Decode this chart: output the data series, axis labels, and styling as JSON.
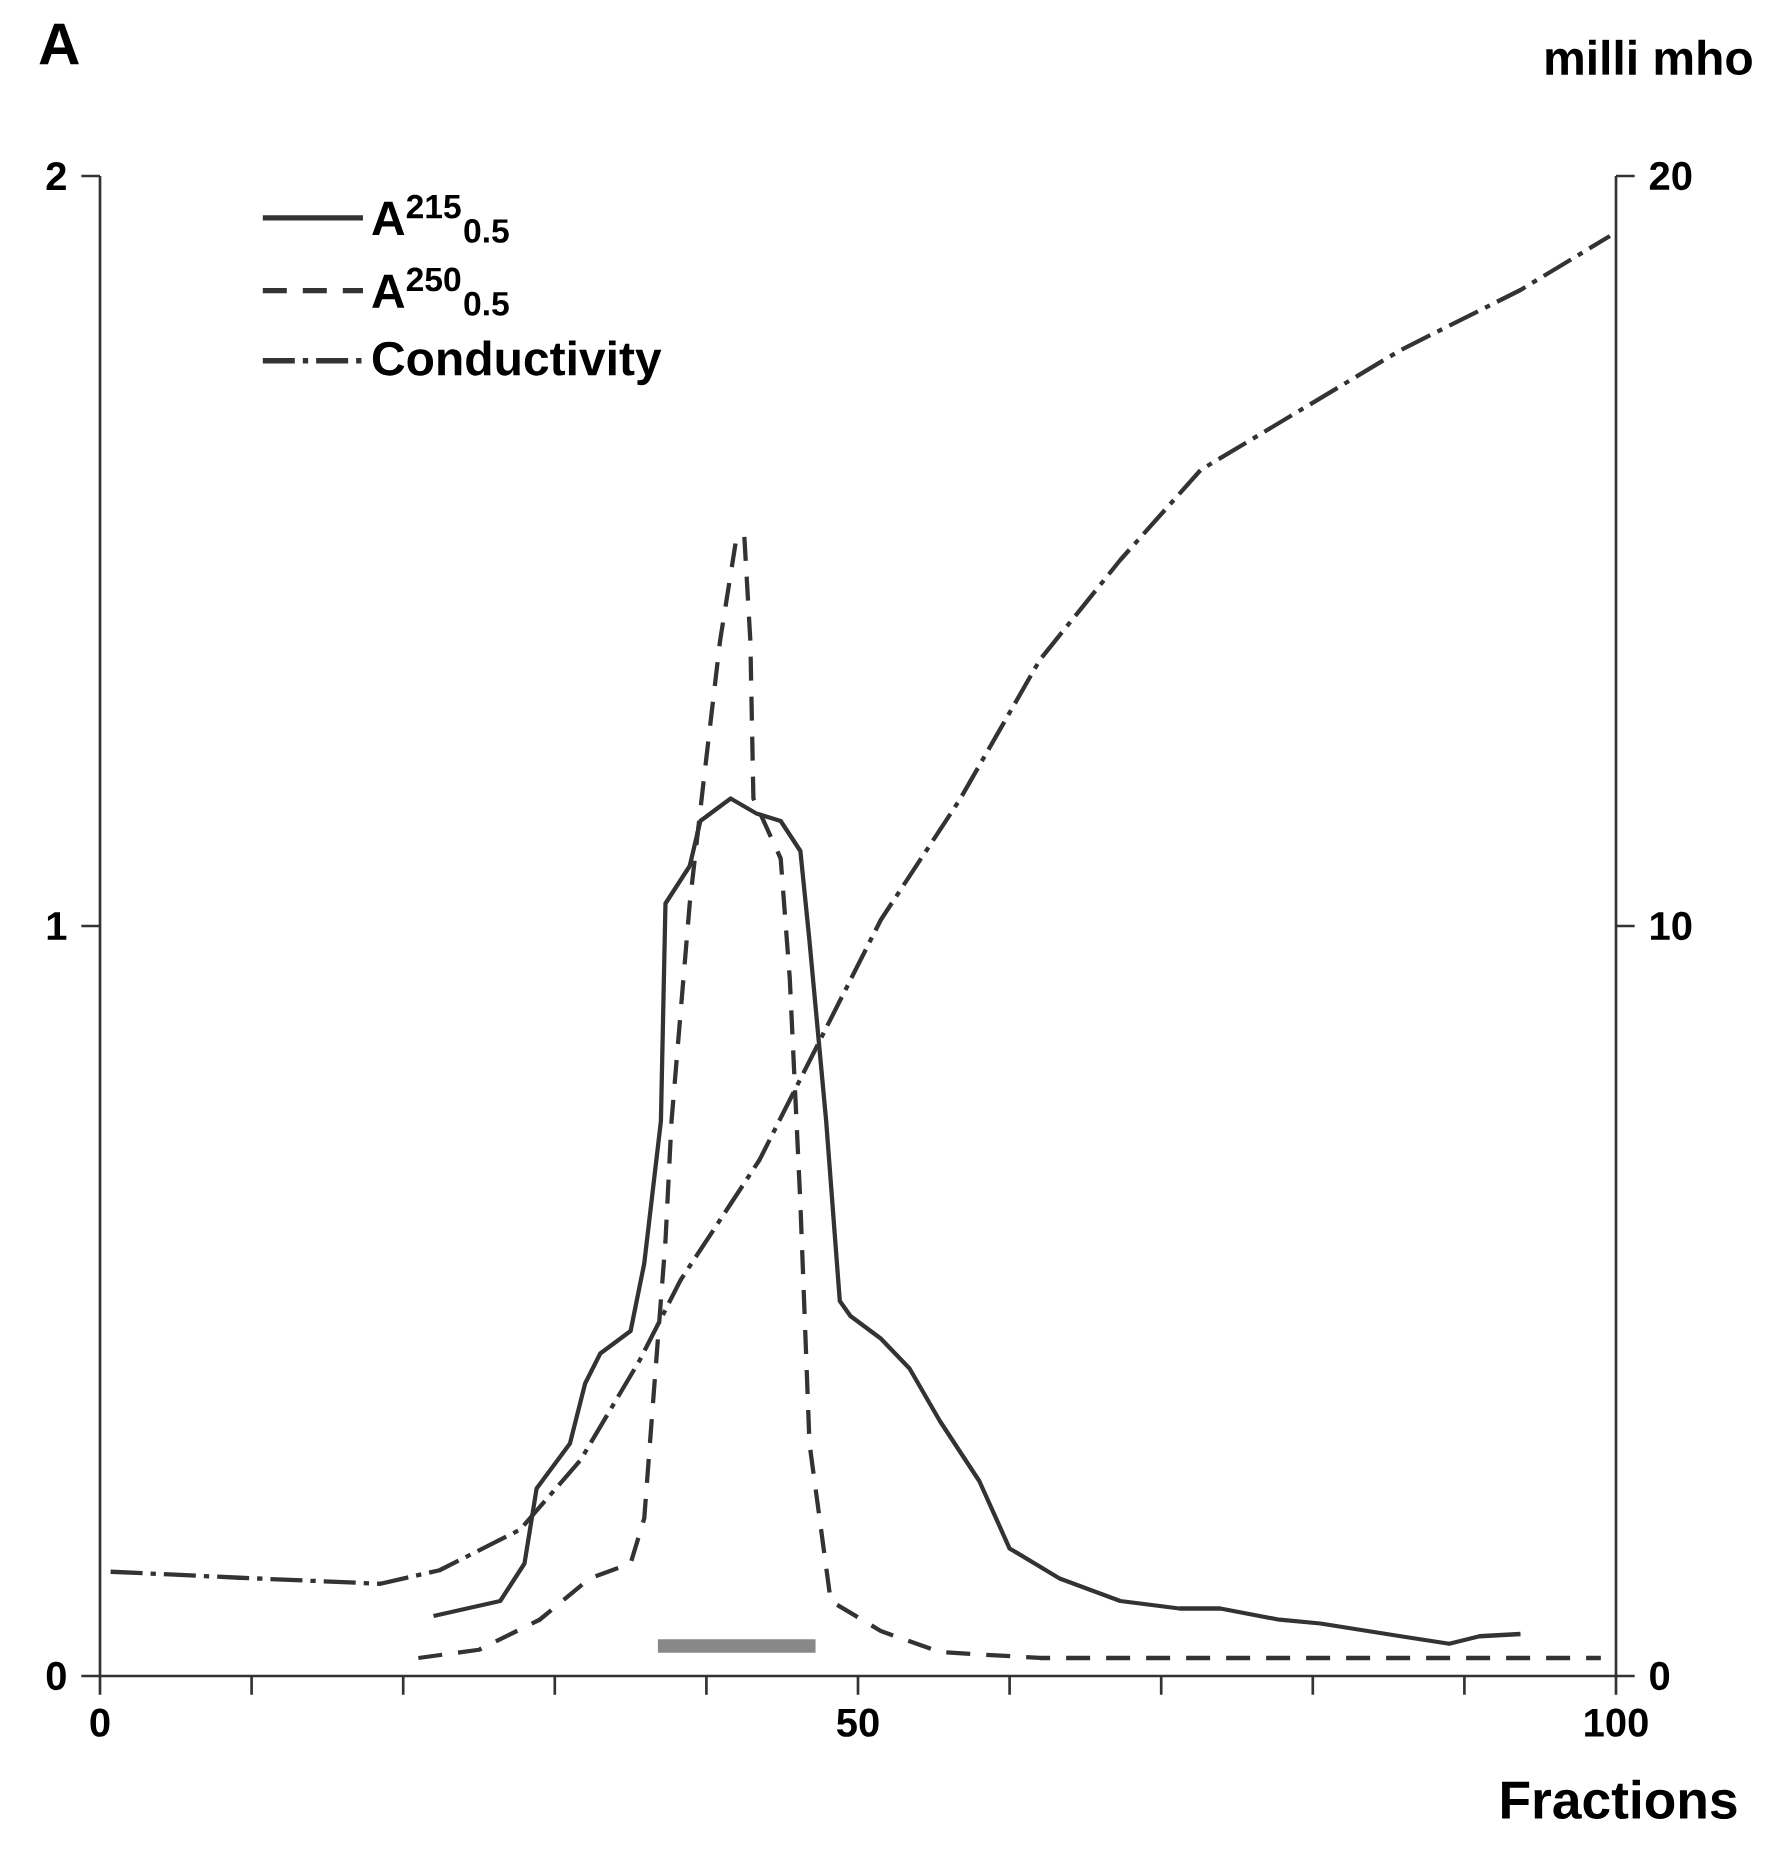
{
  "chart_data": {
    "type": "line",
    "title": "A",
    "xlabel": "Fractions",
    "y2label": "milli mho",
    "xlim": [
      0,
      100
    ],
    "ylim": [
      0,
      2
    ],
    "y2lim": [
      0,
      20
    ],
    "xticks": [
      0,
      {
        "value": 10,
        "label": null
      },
      {
        "value": 20,
        "label": null
      },
      {
        "value": 30,
        "label": null
      },
      {
        "value": 40,
        "label": null
      },
      50,
      {
        "value": 60,
        "label": null
      },
      {
        "value": 70,
        "label": null
      },
      {
        "value": 80,
        "label": null
      },
      {
        "value": 90,
        "label": null
      },
      100
    ],
    "yticks": [
      0,
      1,
      2
    ],
    "y2ticks": [
      0,
      10,
      20
    ],
    "grid": false,
    "legend": "top left",
    "series": [
      {
        "name": "A$^{215}$$_{0.5}$",
        "color": "#333333",
        "line_style": "solid",
        "axis": "y",
        "x": [
          22,
          26.4,
          28,
          28.8,
          31,
          32,
          33,
          35,
          35.9,
          37,
          37.3,
          38.9,
          39.6,
          41.6,
          43.3,
          44.9,
          46.2,
          46.8,
          47.9,
          48.8,
          49.5,
          51.5,
          53.4,
          55.4,
          58,
          60,
          63.3,
          67.3,
          71.2,
          73.9,
          77.8,
          80.5,
          85.8,
          89,
          91,
          93.7
        ],
        "values": [
          0.08,
          0.1,
          0.15,
          0.25,
          0.31,
          0.39,
          0.43,
          0.46,
          0.55,
          0.74,
          1.03,
          1.08,
          1.14,
          1.17,
          1.15,
          1.14,
          1.1,
          0.98,
          0.74,
          0.5,
          0.48,
          0.45,
          0.41,
          0.34,
          0.26,
          0.17,
          0.13,
          0.1,
          0.09,
          0.09,
          0.075,
          0.07,
          0.053,
          0.043,
          0.053,
          0.056
        ]
      },
      {
        "name": "A$^{250}$$_{0.5}$",
        "color": "#333333",
        "line_style": "dashed",
        "axis": "y",
        "x": [
          21,
          25,
          29,
          32.3,
          35,
          35.9,
          36.5,
          37.3,
          37.7,
          38.9,
          39.8,
          40.9,
          42,
          42.5,
          42.9,
          43.1,
          44.9,
          45.5,
          46.2,
          46.8,
          48.2,
          51.5,
          55.4,
          62,
          72.6,
          85.8,
          99
        ],
        "values": [
          0.024,
          0.035,
          0.075,
          0.13,
          0.15,
          0.21,
          0.37,
          0.58,
          0.74,
          1.03,
          1.19,
          1.38,
          1.52,
          1.52,
          1.38,
          1.17,
          1.09,
          0.93,
          0.63,
          0.31,
          0.1,
          0.06,
          0.032,
          0.024,
          0.024,
          0.024,
          0.024
        ]
      },
      {
        "name": "Conductivity",
        "color": "#333333",
        "line_style": "dashdot",
        "axis": "y2",
        "x": [
          0.7,
          9.2,
          18.5,
          22.4,
          27.7,
          31.7,
          35.6,
          38.3,
          43.5,
          47.5,
          51.5,
          56.7,
          62,
          67.3,
          72.6,
          79.2,
          85.8,
          93.7,
          99.6
        ],
        "values": [
          1.39,
          1.31,
          1.23,
          1.41,
          1.95,
          2.88,
          4.21,
          5.28,
          6.88,
          8.48,
          10.08,
          11.68,
          13.55,
          14.88,
          16.08,
          16.88,
          17.68,
          18.48,
          19.2
        ]
      },
      {
        "color": "#888888",
        "line_style": "solid",
        "axis": "y",
        "x": [
          36.8,
          47.2
        ],
        "values": [
          0.04,
          0.04
        ]
      }
    ]
  }
}
